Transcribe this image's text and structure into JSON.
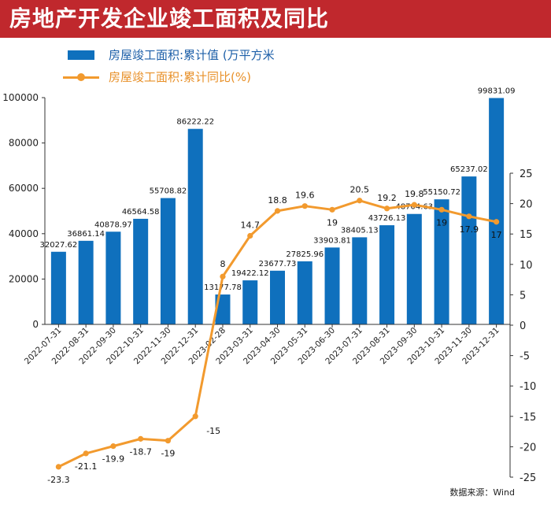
{
  "header": {
    "title": "房地产开发企业竣工面积及同比"
  },
  "legend": {
    "bar_label": "房屋竣工面积:累计值 (万平方米",
    "line_label": "房屋竣工面积:累计同比(%)"
  },
  "source": "数据来源：Wind",
  "colors": {
    "bar": "#0f70bd",
    "line": "#f29a2e",
    "header": "#c0282d"
  },
  "chart_data": {
    "type": "bar",
    "categories": [
      "2022-07-31",
      "2022-08-31",
      "2022-09-30",
      "2022-10-31",
      "2022-11-30",
      "2022-12-31",
      "2023-02-28",
      "2023-03-31",
      "2023-04-30",
      "2023-05-31",
      "2023-06-30",
      "2023-07-31",
      "2023-08-31",
      "2023-09-30",
      "2023-10-31",
      "2023-11-30",
      "2023-12-31"
    ],
    "series": [
      {
        "name": "房屋竣工面积:累计值 (万平方米",
        "type": "bar",
        "axis": "left",
        "values": [
          32027.62,
          36861.14,
          40878.97,
          46564.58,
          55708.82,
          86222.22,
          13177.78,
          19422.12,
          23677.73,
          27825.96,
          33903.81,
          38405.13,
          43726.13,
          48704.63,
          55150.72,
          65237.02,
          99831.09
        ],
        "labels": [
          "32027.62",
          "36861.14",
          "40878.97",
          "46564.58",
          "55708.82",
          "86222.22",
          "13177.78",
          "19422.12",
          "23677.73",
          "27825.96",
          "33903.81",
          "38405.13",
          "43726.13",
          "48704.63",
          "55150.72",
          "65237.02",
          "99831.09"
        ]
      },
      {
        "name": "房屋竣工面积:累计同比(%)",
        "type": "line",
        "axis": "right",
        "values": [
          -23.3,
          -21.1,
          -19.9,
          -18.7,
          -19,
          -15,
          8,
          14.7,
          18.8,
          19.6,
          19,
          20.5,
          19.2,
          19.8,
          19,
          17.9,
          17
        ],
        "labels": [
          "-23.3",
          "-21.1",
          "-19.9",
          "-18.7",
          "-19",
          "-15",
          "8",
          "14.7",
          "18.8",
          "19.6",
          "19",
          "20.5",
          "19.2",
          "19.8",
          "19",
          "17.9",
          "17"
        ]
      }
    ],
    "left_axis": {
      "ylim": [
        0,
        100000
      ],
      "ticks": [
        0,
        20000,
        40000,
        60000,
        80000,
        100000
      ],
      "tick_labels": [
        "0",
        "20000",
        "40000",
        "60000",
        "80000",
        "100000"
      ]
    },
    "right_axis": {
      "ylim": [
        -25,
        25
      ],
      "ticks": [
        -25,
        -20,
        -15,
        -10,
        -5,
        0,
        5,
        10,
        15,
        20,
        25
      ],
      "tick_labels": [
        "-25",
        "-20",
        "-15",
        "-10",
        "-5",
        "0",
        "5",
        "10",
        "15",
        "20",
        "25"
      ]
    },
    "grid": false,
    "legend_position": "top-left"
  }
}
